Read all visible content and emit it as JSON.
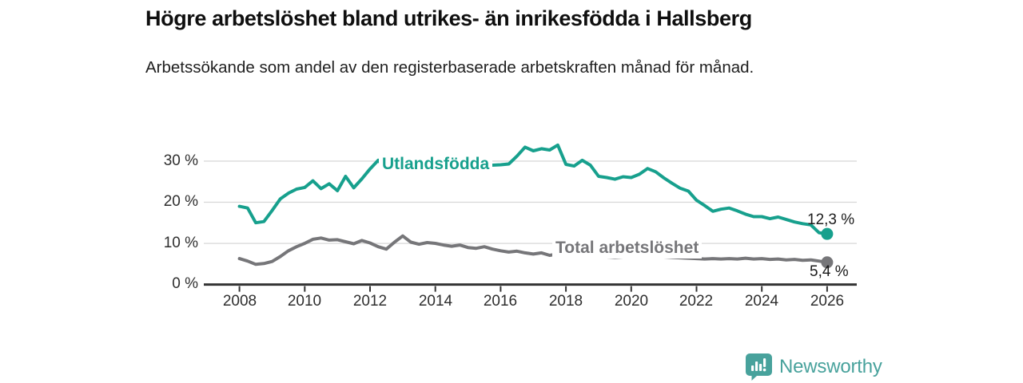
{
  "title": "Högre arbetslöshet bland utrikes- än inrikesfödda i Hallsberg",
  "subtitle": "Arbetssökande som andel av den registerbaserade arbetskraften månad för månad.",
  "chart_data": {
    "type": "line",
    "title": "Högre arbetslöshet bland utrikes- än inrikesfödda i Hallsberg",
    "subtitle": "Arbetssökande som andel av den registerbaserade arbetskraften månad för månad.",
    "xlabel": "",
    "ylabel": "",
    "x_unit": "year (monthly series)",
    "y_unit": "%",
    "x_start": 2008.0,
    "x_step": 0.25,
    "xlim": [
      2006.9,
      2026.9
    ],
    "ylim": [
      0,
      36
    ],
    "grid": "horizontal",
    "legend_position": "inline-labels-on-lines",
    "y_ticks": [
      {
        "value": 30,
        "label": "30 %"
      },
      {
        "value": 20,
        "label": "20 %"
      },
      {
        "value": 10,
        "label": "10 %"
      },
      {
        "value": 0,
        "label": "0 %"
      }
    ],
    "x_ticks": [
      {
        "value": 2008,
        "label": "2008"
      },
      {
        "value": 2010,
        "label": "2010"
      },
      {
        "value": 2012,
        "label": "2012"
      },
      {
        "value": 2014,
        "label": "2014"
      },
      {
        "value": 2016,
        "label": "2016"
      },
      {
        "value": 2018,
        "label": "2018"
      },
      {
        "value": 2020,
        "label": "2020"
      },
      {
        "value": 2022,
        "label": "2022"
      },
      {
        "value": 2024,
        "label": "2024"
      },
      {
        "value": 2026,
        "label": "2026"
      }
    ],
    "series": [
      {
        "name": "Utlandsfödda",
        "color": "#17a08d",
        "end_value": 12.3,
        "end_label": "12,3 %",
        "values": [
          19.0,
          18.6,
          15.0,
          15.3,
          18.0,
          20.8,
          22.2,
          23.2,
          23.6,
          25.2,
          23.3,
          24.5,
          22.8,
          26.3,
          23.5,
          25.7,
          28.1,
          30.2,
          27.9,
          28.3,
          28.7,
          29.3,
          28.8,
          29.1,
          28.8,
          29.4,
          29.0,
          28.7,
          28.9,
          28.4,
          28.8,
          29.0,
          29.1,
          29.3,
          31.2,
          33.4,
          32.5,
          33.0,
          32.7,
          33.9,
          29.2,
          28.8,
          30.2,
          29.0,
          26.3,
          26.0,
          25.6,
          26.2,
          26.0,
          26.8,
          28.2,
          27.4,
          25.9,
          24.6,
          23.4,
          22.7,
          20.5,
          19.2,
          17.8,
          18.3,
          18.6,
          17.9,
          17.1,
          16.5,
          16.5,
          16.0,
          16.4,
          15.8,
          15.2,
          14.8,
          14.5,
          12.6,
          12.3
        ]
      },
      {
        "name": "Total arbetslöshet",
        "color": "#767679",
        "end_value": 5.4,
        "end_label": "5,4 %",
        "values": [
          6.3,
          5.7,
          4.9,
          5.1,
          5.6,
          6.8,
          8.2,
          9.2,
          10.0,
          11.0,
          11.3,
          10.8,
          10.9,
          10.4,
          9.9,
          10.7,
          10.1,
          9.2,
          8.6,
          10.3,
          11.8,
          10.3,
          9.8,
          10.2,
          10.0,
          9.6,
          9.3,
          9.6,
          9.0,
          8.8,
          9.2,
          8.6,
          8.2,
          7.9,
          8.1,
          7.7,
          7.4,
          7.7,
          7.1,
          7.4,
          7.5,
          7.2,
          7.0,
          6.9,
          6.8,
          6.7,
          6.6,
          6.7,
          6.9,
          7.0,
          6.9,
          6.8,
          6.7,
          6.6,
          6.5,
          6.4,
          6.3,
          6.2,
          6.3,
          6.2,
          6.3,
          6.2,
          6.4,
          6.2,
          6.3,
          6.1,
          6.2,
          6.0,
          6.1,
          5.9,
          6.0,
          5.7,
          5.4
        ]
      }
    ],
    "colors": {
      "grid": "#dadada",
      "axis": "#333333",
      "tick_text": "#2e2e2e"
    }
  },
  "branding": {
    "logo_text": "Newsworthy",
    "logo_color": "#48a29c",
    "logo_icon": "bar-chart-speech-bubble-icon"
  }
}
